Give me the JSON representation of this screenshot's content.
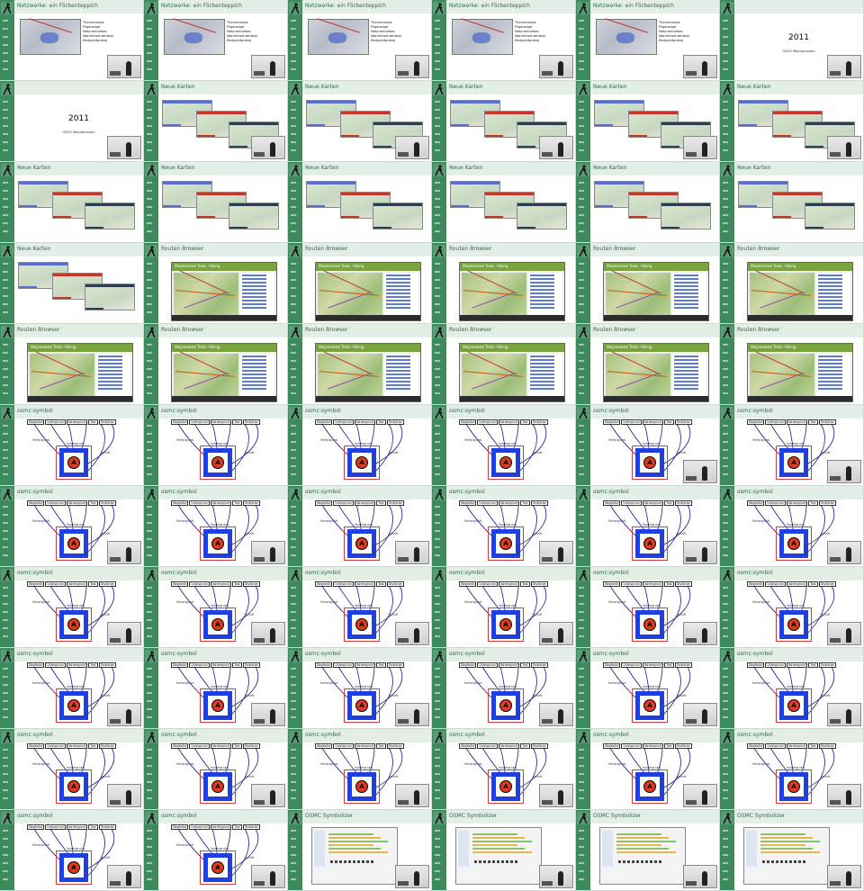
{
  "columns": 6,
  "rows": 11,
  "colors": {
    "sidebar": "#3d8a5c",
    "header": "#e3eee6",
    "title": "#2d6b47",
    "symbol_blue": "#1f3fe0",
    "symbol_red": "#e03a1c"
  },
  "slides": {
    "netz": {
      "title": "Netzwerke: ein Flickenteppich",
      "legend": [
        "Themenwege",
        "Pilgerwege",
        "Naturlehrpfade",
        "Wanderwanderweg",
        "Radwanderweg"
      ]
    },
    "year": {
      "title": "",
      "year": "2011",
      "sub": "OSGO Wanderrouten"
    },
    "karten": {
      "title": "Neue Karten"
    },
    "routen": {
      "title": "Routen Browser",
      "header": "Waymarked Trails: Hiking"
    },
    "symbol": {
      "title": "osmc:symbol",
      "labels": [
        "Wegfarbe",
        "Untergrund",
        "Vordergrund",
        "Text",
        "Textfarbe"
      ],
      "tag_left": "Hintergrund",
      "tag_mid": "Vordergrund",
      "tag_right": "Schrift",
      "letter": "A"
    },
    "symbolizer": {
      "title": "OSMC Symbolizer"
    }
  },
  "tiles": [
    "netz",
    "netz",
    "netz",
    "netz",
    "netz",
    "year",
    "year",
    "karten",
    "karten",
    "karten",
    "karten",
    "karten",
    "karten",
    "karten",
    "karten",
    "karten",
    "karten",
    "karten",
    "karten",
    "routen",
    "routen",
    "routen",
    "routen",
    "routen",
    "routen",
    "routen",
    "routen",
    "routen",
    "routen",
    "routen",
    "symbol",
    "symbol",
    "symbol",
    "symbol",
    "symbol",
    "symbol",
    "symbol",
    "symbol",
    "symbol",
    "symbol",
    "symbol",
    "symbol",
    "symbol",
    "symbol",
    "symbol",
    "symbol",
    "symbol",
    "symbol",
    "symbol",
    "symbol",
    "symbol",
    "symbol",
    "symbol",
    "symbol",
    "symbol",
    "symbol",
    "symbol",
    "symbol",
    "symbol",
    "symbol",
    "symbol",
    "symbol",
    "symbolizer",
    "symbolizer",
    "symbolizer",
    "symbolizer"
  ],
  "video": [
    true,
    true,
    true,
    true,
    true,
    true,
    true,
    true,
    true,
    true,
    true,
    true,
    false,
    false,
    false,
    false,
    false,
    false,
    false,
    false,
    false,
    false,
    false,
    false,
    false,
    false,
    false,
    false,
    false,
    false,
    false,
    false,
    false,
    false,
    true,
    true,
    true,
    true,
    true,
    true,
    true,
    true,
    true,
    true,
    true,
    true,
    true,
    true,
    true,
    true,
    true,
    true,
    true,
    true,
    true,
    true,
    true,
    true,
    true,
    true,
    true,
    true,
    true,
    true,
    true,
    true
  ]
}
